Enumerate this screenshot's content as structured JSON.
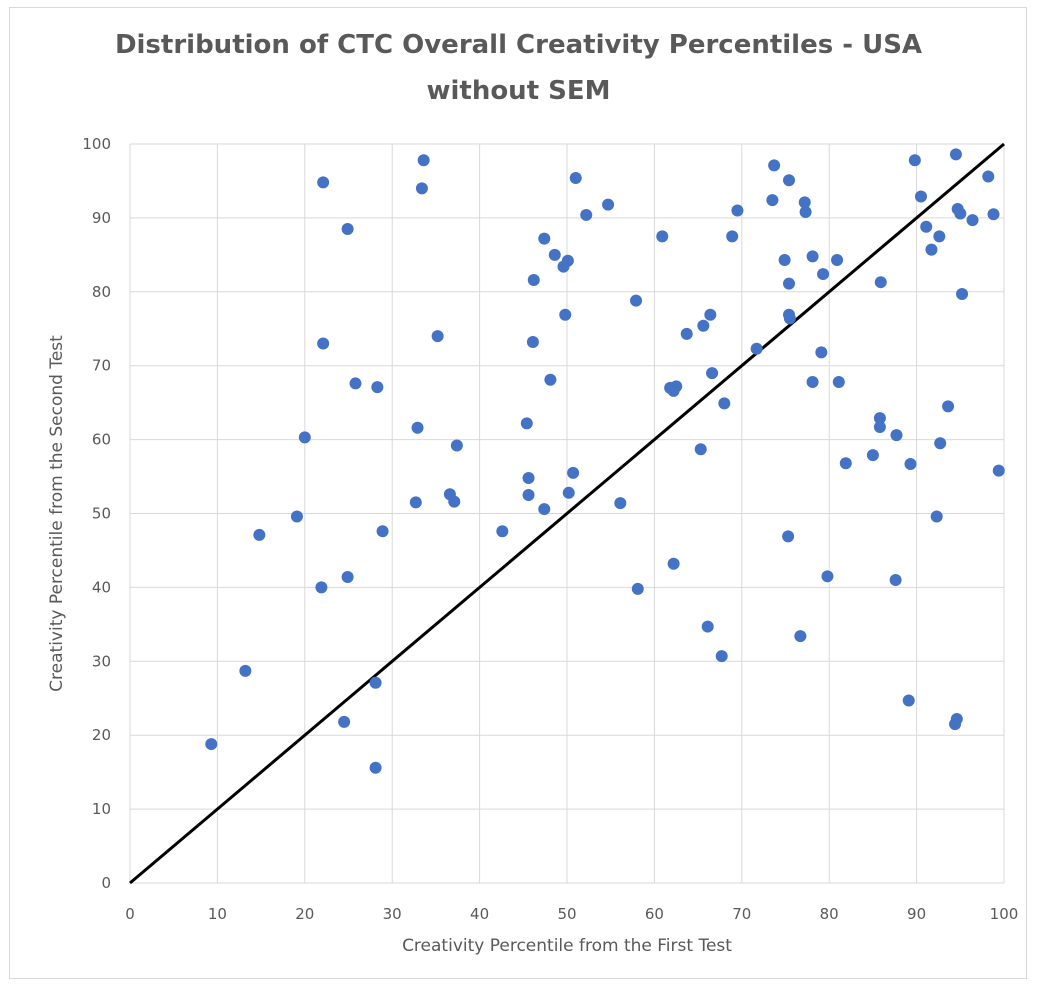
{
  "chart_data": {
    "type": "scatter",
    "title_lines": [
      "Distribution of CTC Overall Creativity Percentiles - USA",
      "without SEM"
    ],
    "xlabel": "Creativity Percentile from the First Test",
    "ylabel": "Creativity Percentile from the Second Test",
    "xlim": [
      0,
      100
    ],
    "ylim": [
      0,
      100
    ],
    "x_ticks": [
      "0",
      "10",
      "20",
      "30",
      "40",
      "50",
      "60",
      "70",
      "80",
      "90",
      "100"
    ],
    "y_ticks": [
      "0",
      "10",
      "20",
      "30",
      "40",
      "50",
      "60",
      "70",
      "80",
      "90",
      "100"
    ],
    "grid": true,
    "legend": "none",
    "marker_color": "#4472c4",
    "line_color": "#000000",
    "reference_line": {
      "from": [
        0,
        0
      ],
      "to": [
        100,
        100
      ]
    },
    "points": [
      [
        9.3,
        18.8
      ],
      [
        13.2,
        28.7
      ],
      [
        14.8,
        47.1
      ],
      [
        19.1,
        49.6
      ],
      [
        20.0,
        60.3
      ],
      [
        21.9,
        40.0
      ],
      [
        22.1,
        94.8
      ],
      [
        22.1,
        73.0
      ],
      [
        24.5,
        21.8
      ],
      [
        24.9,
        41.4
      ],
      [
        24.9,
        88.5
      ],
      [
        25.8,
        67.6
      ],
      [
        28.1,
        27.1
      ],
      [
        28.1,
        15.6
      ],
      [
        28.3,
        67.1
      ],
      [
        28.9,
        47.6
      ],
      [
        32.7,
        51.5
      ],
      [
        32.9,
        61.6
      ],
      [
        33.4,
        94.0
      ],
      [
        33.6,
        97.8
      ],
      [
        35.2,
        74.0
      ],
      [
        36.6,
        52.6
      ],
      [
        37.1,
        51.6
      ],
      [
        37.4,
        59.2
      ],
      [
        42.6,
        47.6
      ],
      [
        45.4,
        62.2
      ],
      [
        45.6,
        54.8
      ],
      [
        45.6,
        52.5
      ],
      [
        46.1,
        73.2
      ],
      [
        46.2,
        81.6
      ],
      [
        47.4,
        50.6
      ],
      [
        47.4,
        87.2
      ],
      [
        48.1,
        68.1
      ],
      [
        48.6,
        85.0
      ],
      [
        49.6,
        83.4
      ],
      [
        49.8,
        76.9
      ],
      [
        50.1,
        84.2
      ],
      [
        50.2,
        52.8
      ],
      [
        50.7,
        55.5
      ],
      [
        51.0,
        95.4
      ],
      [
        52.2,
        90.4
      ],
      [
        54.7,
        91.8
      ],
      [
        56.1,
        51.4
      ],
      [
        57.9,
        78.8
      ],
      [
        58.1,
        39.8
      ],
      [
        60.9,
        87.5
      ],
      [
        61.8,
        67.0
      ],
      [
        62.2,
        43.2
      ],
      [
        62.2,
        66.6
      ],
      [
        62.5,
        67.2
      ],
      [
        63.7,
        74.3
      ],
      [
        65.3,
        58.7
      ],
      [
        65.6,
        75.4
      ],
      [
        66.1,
        34.7
      ],
      [
        66.4,
        76.9
      ],
      [
        66.6,
        69.0
      ],
      [
        67.7,
        30.7
      ],
      [
        68.0,
        64.9
      ],
      [
        68.9,
        87.5
      ],
      [
        69.5,
        91.0
      ],
      [
        71.7,
        72.3
      ],
      [
        73.5,
        92.4
      ],
      [
        73.7,
        97.1
      ],
      [
        74.9,
        84.3
      ],
      [
        75.3,
        46.9
      ],
      [
        75.4,
        81.1
      ],
      [
        75.4,
        95.1
      ],
      [
        75.4,
        76.9
      ],
      [
        75.5,
        76.4
      ],
      [
        76.7,
        33.4
      ],
      [
        77.2,
        92.1
      ],
      [
        77.3,
        90.8
      ],
      [
        78.1,
        84.8
      ],
      [
        78.1,
        67.8
      ],
      [
        79.1,
        71.8
      ],
      [
        79.3,
        82.4
      ],
      [
        79.8,
        41.5
      ],
      [
        80.9,
        84.3
      ],
      [
        81.1,
        67.8
      ],
      [
        81.9,
        56.8
      ],
      [
        85.0,
        57.9
      ],
      [
        85.8,
        61.7
      ],
      [
        85.8,
        62.9
      ],
      [
        85.9,
        81.3
      ],
      [
        87.6,
        41.0
      ],
      [
        87.7,
        60.6
      ],
      [
        89.1,
        24.7
      ],
      [
        89.3,
        56.7
      ],
      [
        89.8,
        97.8
      ],
      [
        90.5,
        92.9
      ],
      [
        91.1,
        88.8
      ],
      [
        91.7,
        85.7
      ],
      [
        92.3,
        49.6
      ],
      [
        92.6,
        87.5
      ],
      [
        92.7,
        59.5
      ],
      [
        93.6,
        64.5
      ],
      [
        94.4,
        21.5
      ],
      [
        94.5,
        98.6
      ],
      [
        94.6,
        22.2
      ],
      [
        94.7,
        91.2
      ],
      [
        95.0,
        90.6
      ],
      [
        95.2,
        79.7
      ],
      [
        96.4,
        89.7
      ],
      [
        98.2,
        95.6
      ],
      [
        98.8,
        90.5
      ],
      [
        99.4,
        55.8
      ]
    ]
  }
}
